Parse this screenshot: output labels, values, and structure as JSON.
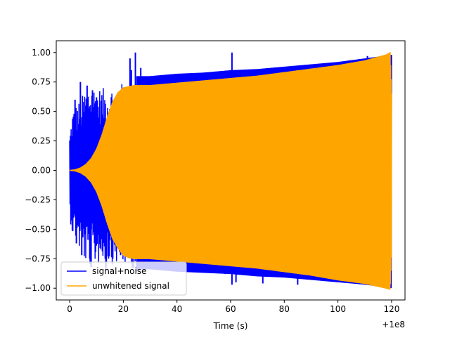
{
  "chart_data": {
    "type": "line",
    "title": "",
    "xlabel": "Time (s)",
    "ylabel": "",
    "x_offset_label": "+1e8",
    "xlim": [
      -5,
      125
    ],
    "ylim": [
      -1.1,
      1.1
    ],
    "x_ticks": [
      0,
      20,
      40,
      60,
      80,
      100,
      120
    ],
    "x_tick_labels": [
      "0",
      "20",
      "40",
      "60",
      "80",
      "100",
      "120"
    ],
    "y_ticks": [
      1.0,
      0.75,
      0.5,
      0.25,
      0.0,
      -0.25,
      -0.5,
      -0.75,
      -1.0
    ],
    "y_tick_labels": [
      "1.00",
      "0.75",
      "0.50",
      "0.25",
      "0.00",
      "−0.25",
      "−0.50",
      "−0.75",
      "−1.00"
    ],
    "grid": false,
    "legend_position": "lower-left",
    "series": [
      {
        "name": "signal+noise",
        "color": "#0000ff",
        "envelope": {
          "x": [
            0,
            1,
            2,
            4,
            6,
            8,
            10,
            12,
            14,
            16,
            18,
            20,
            22,
            24,
            26,
            28,
            30,
            40,
            50,
            60,
            70,
            80,
            90,
            100,
            110,
            120
          ],
          "upper": [
            0.3,
            0.5,
            0.55,
            0.6,
            0.7,
            0.75,
            0.7,
            0.7,
            0.7,
            0.72,
            0.72,
            0.75,
            0.78,
            0.8,
            0.8,
            0.8,
            0.8,
            0.82,
            0.83,
            0.85,
            0.86,
            0.88,
            0.9,
            0.92,
            0.95,
            0.98
          ],
          "lower": [
            -0.4,
            -0.55,
            -0.6,
            -0.7,
            -0.8,
            -0.82,
            -0.8,
            -0.8,
            -0.8,
            -0.8,
            -0.8,
            -0.82,
            -0.82,
            -0.84,
            -0.84,
            -0.84,
            -0.84,
            -0.86,
            -0.87,
            -0.88,
            -0.9,
            -0.91,
            -0.93,
            -0.95,
            -0.97,
            -1.0
          ]
        },
        "spikes": [
          {
            "x": 22.5,
            "y": 0.95
          },
          {
            "x": 23.0,
            "y": 0.85
          },
          {
            "x": 24.5,
            "y": 1.0
          },
          {
            "x": 26.5,
            "y": 0.87
          },
          {
            "x": 60.5,
            "y": 1.0
          },
          {
            "x": 54.0,
            "y": 0.8
          },
          {
            "x": 111.0,
            "y": 0.97
          },
          {
            "x": 2.0,
            "y": 0.6
          },
          {
            "x": 4.0,
            "y": 0.75
          },
          {
            "x": 6.5,
            "y": 0.72
          },
          {
            "x": 8.5,
            "y": 0.68
          },
          {
            "x": 10.0,
            "y": 0.62
          },
          {
            "x": 2.5,
            "y": -0.62
          },
          {
            "x": 4.5,
            "y": -0.72
          },
          {
            "x": 7.5,
            "y": -0.75
          },
          {
            "x": 8.0,
            "y": -0.82
          },
          {
            "x": 13.5,
            "y": -0.85
          },
          {
            "x": 19.0,
            "y": -0.72
          },
          {
            "x": 25.0,
            "y": -0.86
          },
          {
            "x": 58.0,
            "y": -0.88
          },
          {
            "x": 60.5,
            "y": -0.97
          },
          {
            "x": 62.0,
            "y": -0.95
          },
          {
            "x": 72.0,
            "y": -0.96
          },
          {
            "x": 85.0,
            "y": -0.97
          }
        ]
      },
      {
        "name": "unwhitened signal",
        "color": "#ffa500",
        "envelope": {
          "x": [
            0,
            2,
            4,
            6,
            8,
            10,
            12,
            14,
            16,
            18,
            20,
            22,
            24,
            26,
            28,
            30,
            40,
            50,
            60,
            70,
            80,
            90,
            100,
            110,
            118,
            119.5,
            120
          ],
          "upper": [
            0.0,
            0.005,
            0.02,
            0.05,
            0.1,
            0.18,
            0.3,
            0.45,
            0.58,
            0.66,
            0.7,
            0.71,
            0.72,
            0.72,
            0.72,
            0.72,
            0.74,
            0.76,
            0.78,
            0.8,
            0.83,
            0.86,
            0.89,
            0.93,
            0.98,
            1.0,
            0.65
          ],
          "lower": [
            0.0,
            -0.005,
            -0.02,
            -0.05,
            -0.1,
            -0.18,
            -0.3,
            -0.45,
            -0.58,
            -0.66,
            -0.72,
            -0.74,
            -0.75,
            -0.75,
            -0.75,
            -0.75,
            -0.77,
            -0.79,
            -0.81,
            -0.83,
            -0.86,
            -0.89,
            -0.93,
            -0.96,
            -1.0,
            -1.01,
            -0.68
          ]
        }
      }
    ]
  }
}
